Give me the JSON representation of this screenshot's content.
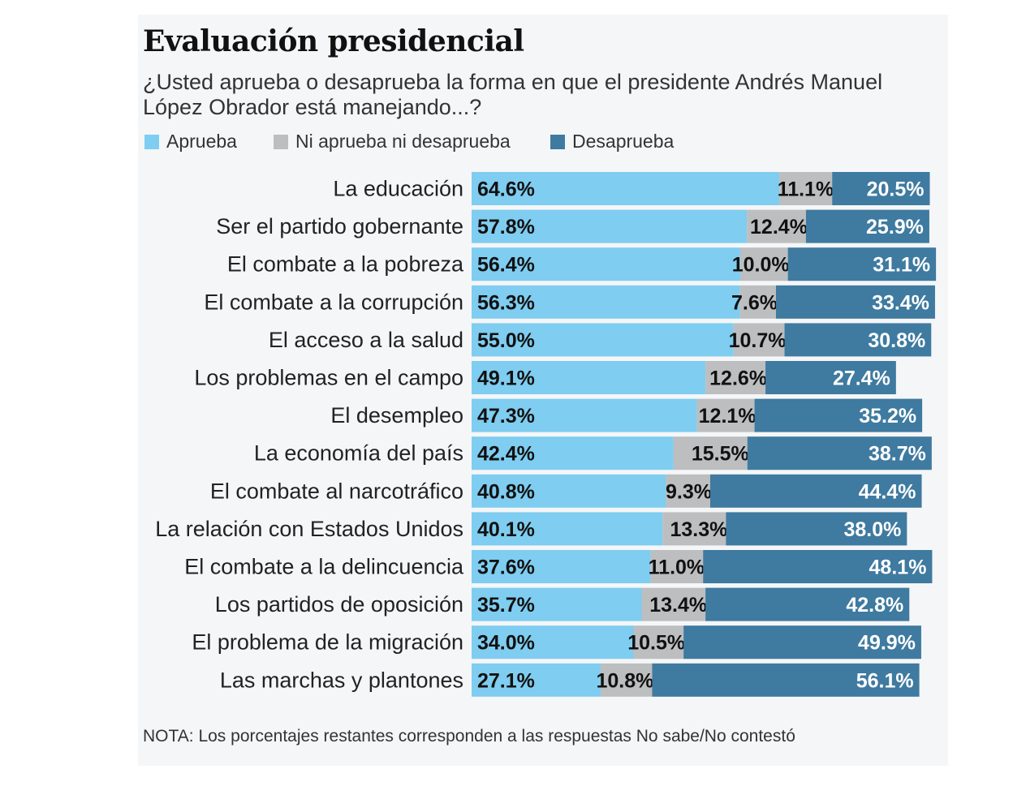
{
  "chart_data": {
    "type": "bar",
    "orientation": "horizontal",
    "stacked": true,
    "title": "Evaluación presidencial",
    "subtitle": "¿Usted aprueba o desaprueba la forma en que el presidente Andrés Manuel López Obrador está manejando...?",
    "xlabel": "",
    "ylabel": "",
    "xlim": [
      0,
      100
    ],
    "unit": "%",
    "grid": false,
    "legend_position": "top-left",
    "categories": [
      "La educación",
      "Ser el partido gobernante",
      "El combate a la pobreza",
      "El combate a la corrupción",
      "El acceso a la salud",
      "Los problemas en el campo",
      "El desempleo",
      "La economía del país",
      "El combate al narcotráfico",
      "La relación con Estados Unidos",
      "El combate a la delincuencia",
      "Los partidos de oposición",
      "El problema de la migración",
      "Las marchas y plantones"
    ],
    "series": [
      {
        "name": "Aprueba",
        "color": "#7fcdf0",
        "label_color": "#111111",
        "values": [
          64.6,
          57.8,
          56.4,
          56.3,
          55.0,
          49.1,
          47.3,
          42.4,
          40.8,
          40.1,
          37.6,
          35.7,
          34.0,
          27.1
        ],
        "labels": [
          "64.6%",
          "57.8%",
          "56.4%",
          "56.3%",
          "55.0%",
          "49.1%",
          "47.3%",
          "42.4%",
          "40.8%",
          "40.1%",
          "37.6%",
          "35.7%",
          "34.0%",
          "27.1%"
        ]
      },
      {
        "name": "Ni aprueba ni desaprueba",
        "color": "#bcbec0",
        "label_color": "#111111",
        "values": [
          11.1,
          12.4,
          10.0,
          7.6,
          10.7,
          12.6,
          12.1,
          15.5,
          9.3,
          13.3,
          11.0,
          13.4,
          10.5,
          10.8
        ],
        "labels": [
          "11.1%",
          "12.4%",
          "10.0%",
          "7.6%",
          "10.7%",
          "12.6%",
          "12.1%",
          "15.5%",
          "9.3%",
          "13.3%",
          "11.0%",
          "13.4%",
          "10.5%",
          "10.8%"
        ]
      },
      {
        "name": "Desaprueba",
        "color": "#3f7aa0",
        "label_color": "#ffffff",
        "values": [
          20.5,
          25.9,
          31.1,
          33.4,
          30.8,
          27.4,
          35.2,
          38.7,
          44.4,
          38.0,
          48.1,
          42.8,
          49.9,
          56.1
        ],
        "labels": [
          "20.5%",
          "25.9%",
          "31.1%",
          "33.4%",
          "30.8%",
          "27.4%",
          "35.2%",
          "38.7%",
          "44.4%",
          "38.0%",
          "48.1%",
          "42.8%",
          "49.9%",
          "56.1%"
        ]
      }
    ],
    "note": "NOTA: Los porcentajes restantes corresponden a las respuestas No sabe/No contestó"
  }
}
